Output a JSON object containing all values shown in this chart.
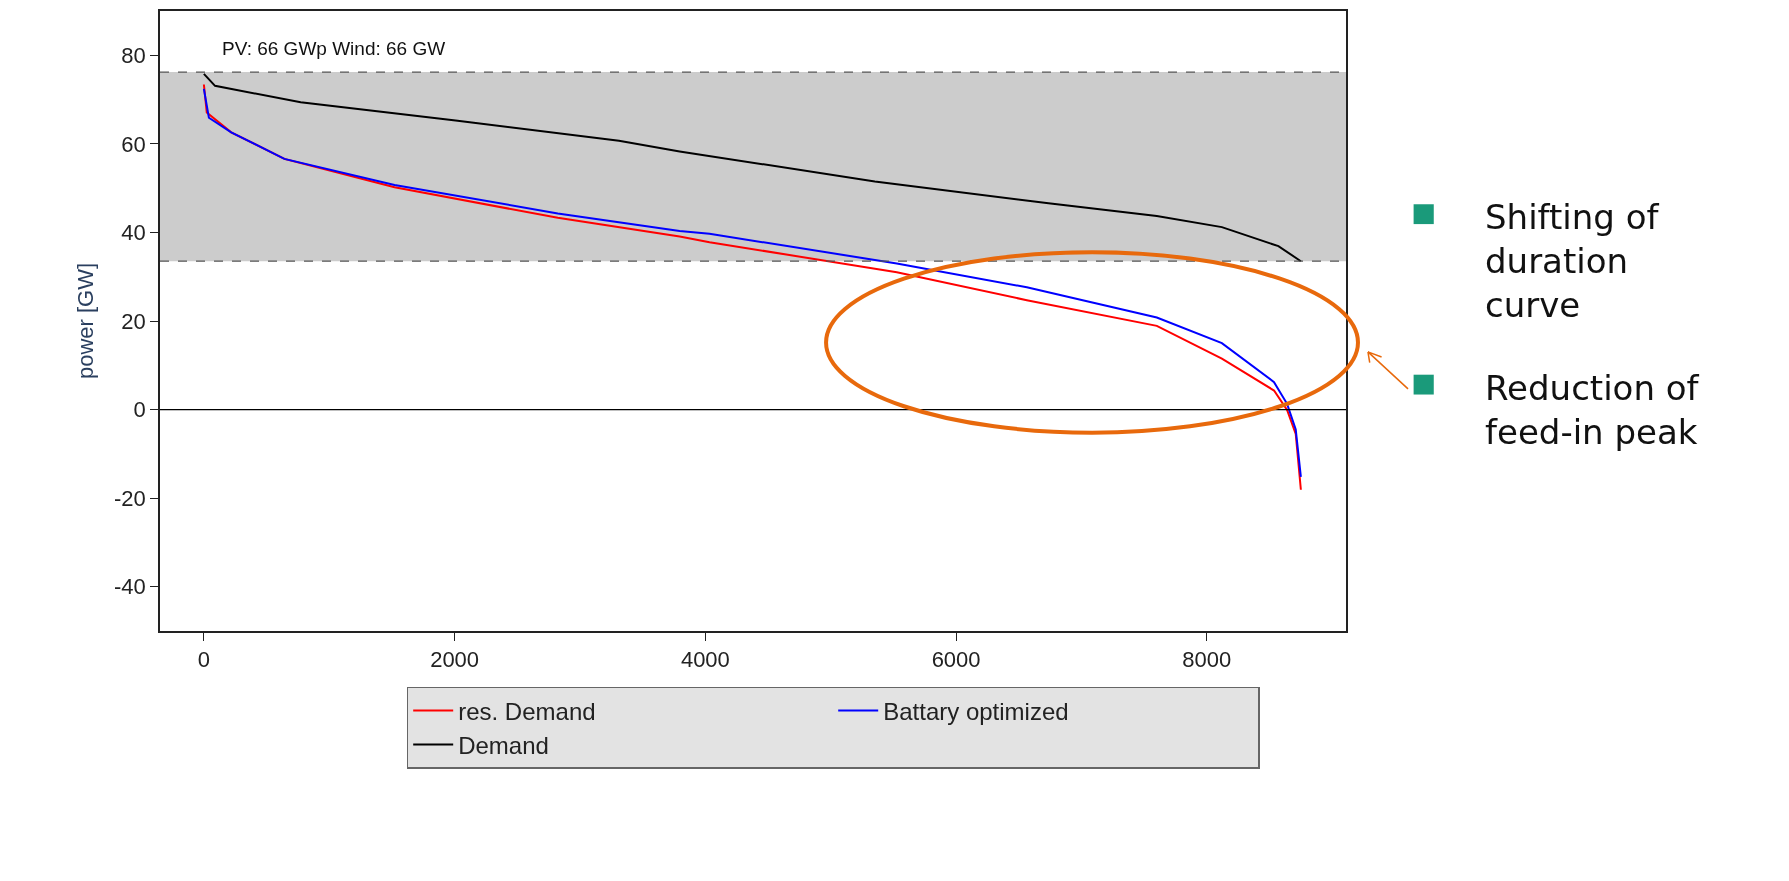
{
  "chart_data": {
    "type": "line",
    "ylabel": "power [GW]",
    "annotations": [
      "PV: 66 GWp Wind: 66 GW",
      "Shifting of\nduration\ncurve",
      "Reduction of\nfeed-in peak"
    ],
    "series": [
      {
        "name": "res. Demand",
        "color": "#ff0000",
        "x": [
          0,
          23,
          218,
          642,
          1521,
          2823,
          3795,
          4033,
          5527,
          6564,
          7601,
          8120,
          8536,
          8640,
          8709,
          8750
        ],
        "values": [
          73.4,
          67.1,
          62.6,
          56.6,
          50.2,
          43.3,
          39.1,
          37.8,
          31.0,
          24.7,
          18.9,
          11.5,
          4.3,
          -0.1,
          -5.5,
          -18.1
        ]
      },
      {
        "name": "Battary optimized",
        "color": "#0000ff",
        "x": [
          0,
          40,
          218,
          642,
          1521,
          2823,
          3795,
          4033,
          5527,
          6564,
          7601,
          8120,
          8536,
          8640,
          8709,
          8750
        ],
        "values": [
          72.4,
          65.9,
          62.6,
          56.6,
          50.7,
          44.3,
          40.3,
          39.7,
          33.0,
          27.6,
          20.8,
          15.0,
          6.2,
          1.3,
          -4.5,
          -15.2
        ]
      },
      {
        "name": "Demand",
        "color": "#000000",
        "x": [
          0,
          89,
          772,
          2008,
          3311,
          3795,
          5352,
          6737,
          7601,
          8120,
          8571,
          8750
        ],
        "values": [
          75.8,
          73.1,
          69.4,
          65.3,
          60.7,
          58.3,
          51.5,
          46.6,
          43.7,
          41.2,
          36.9,
          33.5
        ]
      }
    ],
    "xlim": [
      -350,
      9110
    ],
    "ylim": [
      -50,
      90
    ],
    "xticks": [
      0,
      2000,
      4000,
      6000,
      8000
    ],
    "yticks": [
      -40,
      -20,
      0,
      20,
      40,
      60,
      80
    ],
    "ref_lines": [
      {
        "axis": "y",
        "value": 0,
        "color": "#000000",
        "line_style": "solid"
      },
      {
        "axis": "y",
        "value": 76.2,
        "color": "#555555",
        "line_style": "dashed"
      },
      {
        "axis": "y",
        "value": 33.5,
        "color": "#555555",
        "line_style": "dashed"
      }
    ],
    "bands": [
      {
        "axis": "y",
        "from": 33.5,
        "to": 76.2,
        "color": "#cccccc"
      }
    ],
    "grid": false,
    "legend": "bottom",
    "marker": "none",
    "line_style": "solid"
  }
}
